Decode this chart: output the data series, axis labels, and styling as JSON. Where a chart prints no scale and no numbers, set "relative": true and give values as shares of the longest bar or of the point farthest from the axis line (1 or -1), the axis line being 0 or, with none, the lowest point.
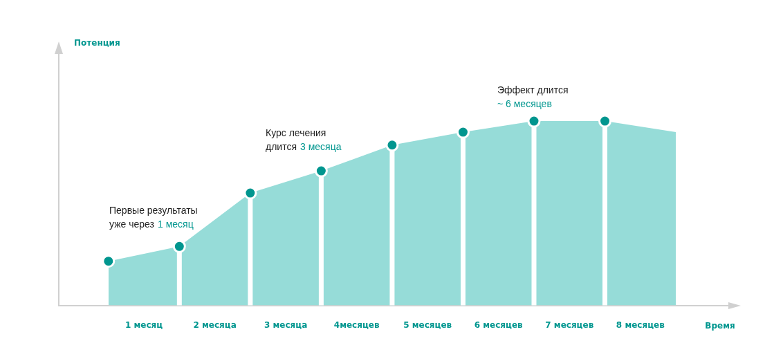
{
  "chart_data": {
    "type": "area",
    "relative": true,
    "xlabel": "Время",
    "xlim": [
      -0.7,
      8.76
    ],
    "xticks": [
      {
        "value": 0.5,
        "label": "1 месяц"
      },
      {
        "value": 1.5,
        "label": "2 месяца"
      },
      {
        "value": 2.5,
        "label": "3 месяца"
      },
      {
        "value": 3.5,
        "label": "4месяцев"
      },
      {
        "value": 4.5,
        "label": "5 месяцев"
      },
      {
        "value": 5.5,
        "label": "6 месяцев"
      },
      {
        "value": 6.5,
        "label": "7 месяцев"
      },
      {
        "value": 7.5,
        "label": "8 месяцев"
      }
    ],
    "series": [
      {
        "type": "area",
        "color": "#96dcd8",
        "x": [
          0,
          1,
          2,
          3,
          4,
          5,
          6,
          7,
          8
        ],
        "values": [
          0.24,
          0.32,
          0.61,
          0.73,
          0.87,
          0.94,
          1,
          1,
          0.94
        ]
      },
      {
        "type": "scatter",
        "color": "#00968f",
        "marker": "circle",
        "x": [
          0,
          1,
          2,
          3,
          4,
          5,
          6,
          7
        ],
        "values": [
          0.24,
          0.32,
          0.61,
          0.73,
          0.87,
          0.94,
          1,
          1
        ]
      }
    ],
    "ref_lines": [
      {
        "axis": "x",
        "value": 1,
        "color": "#ffffff"
      },
      {
        "axis": "x",
        "value": 2,
        "color": "#ffffff"
      },
      {
        "axis": "x",
        "value": 3,
        "color": "#ffffff"
      },
      {
        "axis": "x",
        "value": 4,
        "color": "#ffffff"
      },
      {
        "axis": "x",
        "value": 5,
        "color": "#ffffff"
      },
      {
        "axis": "x",
        "value": 6,
        "color": "#ffffff"
      },
      {
        "axis": "x",
        "value": 7,
        "color": "#ffffff"
      }
    ],
    "annotations": [
      "Первые результаты",
      "уже через",
      "1 месяц",
      "Курс лечения",
      "длится",
      "3 месяца",
      "Эффект длится",
      "~ 6 месяцев",
      "Потенция"
    ]
  }
}
